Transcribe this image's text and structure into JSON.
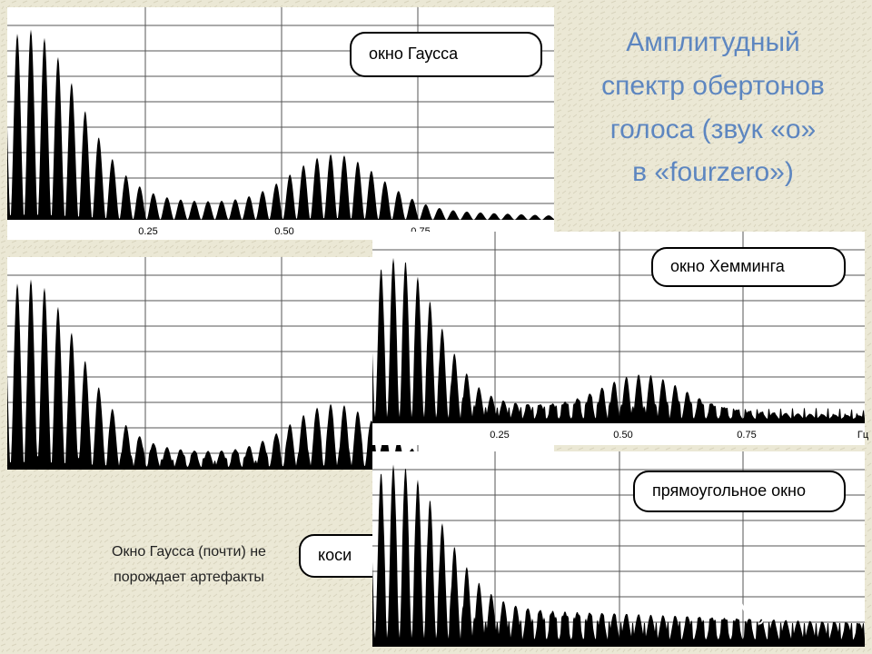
{
  "title": [
    "Амплитудный",
    "спектр обертонов",
    "голоса (звук «о»",
    "в «fourzero»)"
  ],
  "caption": [
    "Окно Гаусса (почти) не",
    "порождает артефакты"
  ],
  "panels": [
    {
      "label": "окно Гаусса",
      "ticks": [
        "0.25",
        "0.50",
        "0.75"
      ]
    },
    {
      "label": "коси"
    },
    {
      "label": "окно Хемминга",
      "ticks": [
        "0.25",
        "0.50",
        "0.75",
        "Гц"
      ]
    },
    {
      "label": "прямоугольное окно"
    }
  ],
  "watermark": "MyShared"
}
